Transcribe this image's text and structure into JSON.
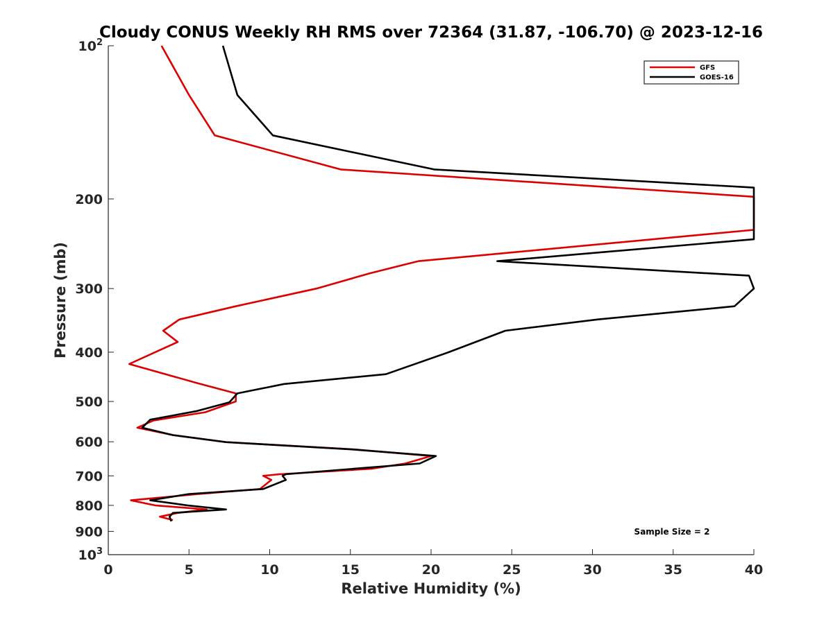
{
  "chart_data": {
    "type": "line",
    "title": "Cloudy CONUS Weekly RH RMS over 72364 (31.87, -106.70) @ 2023-12-16",
    "xlabel": "Relative Humidity (%)",
    "ylabel": "Pressure (mb)",
    "xlim": [
      0,
      40
    ],
    "ylim": [
      100,
      1000
    ],
    "y_scale": "log",
    "y_reversed": true,
    "grid": false,
    "x_ticks": [
      "0",
      "5",
      "10",
      "15",
      "20",
      "25",
      "30",
      "35",
      "40"
    ],
    "y_ticks": [
      {
        "value": 100,
        "base": "10",
        "exp": "2"
      },
      {
        "value": 200,
        "label": "200"
      },
      {
        "value": 300,
        "label": "300"
      },
      {
        "value": 400,
        "label": "400"
      },
      {
        "value": 500,
        "label": "500"
      },
      {
        "value": 600,
        "label": "600"
      },
      {
        "value": 700,
        "label": "700"
      },
      {
        "value": 800,
        "label": "800"
      },
      {
        "value": 900,
        "label": "900"
      },
      {
        "value": 1000,
        "base": "10",
        "exp": "3"
      }
    ],
    "legend": {
      "position": "top-right"
    },
    "annotation": "Sample Size = 2",
    "series": [
      {
        "name": "GFS",
        "color": "#dd0000",
        "points": [
          [
            3.3,
            100
          ],
          [
            5.0,
            125
          ],
          [
            6.6,
            150
          ],
          [
            14.4,
            175
          ],
          [
            40,
            198
          ],
          [
            40,
            230
          ],
          [
            19.2,
            265
          ],
          [
            16.2,
            280
          ],
          [
            12.9,
            300
          ],
          [
            7.9,
            325
          ],
          [
            4.4,
            345
          ],
          [
            3.4,
            363
          ],
          [
            4.3,
            382
          ],
          [
            1.3,
            422
          ],
          [
            5.5,
            460
          ],
          [
            7.9,
            482
          ],
          [
            7.9,
            500
          ],
          [
            6.0,
            525
          ],
          [
            2.8,
            545
          ],
          [
            1.8,
            563
          ],
          [
            4.0,
            582
          ],
          [
            7.3,
            601
          ],
          [
            15.2,
            621
          ],
          [
            20.0,
            640
          ],
          [
            18.4,
            662
          ],
          [
            16.3,
            678
          ],
          [
            10.6,
            695
          ],
          [
            9.6,
            700
          ],
          [
            10.1,
            713
          ],
          [
            9.4,
            743
          ],
          [
            5.6,
            760
          ],
          [
            1.4,
            782
          ],
          [
            2.9,
            800
          ],
          [
            6.1,
            815
          ],
          [
            4.3,
            828
          ],
          [
            3.2,
            842
          ],
          [
            4.0,
            855
          ]
        ]
      },
      {
        "name": "GOES-16",
        "color": "#000000",
        "points": [
          [
            7.1,
            100
          ],
          [
            8.0,
            125
          ],
          [
            10.2,
            150
          ],
          [
            20.2,
            175
          ],
          [
            40,
            190
          ],
          [
            40,
            240
          ],
          [
            24.1,
            265
          ],
          [
            39.7,
            283
          ],
          [
            40,
            300
          ],
          [
            38.8,
            325
          ],
          [
            30.3,
            345
          ],
          [
            24.6,
            363
          ],
          [
            21.1,
            400
          ],
          [
            17.2,
            442
          ],
          [
            10.9,
            462
          ],
          [
            8.0,
            482
          ],
          [
            7.5,
            502
          ],
          [
            5.5,
            522
          ],
          [
            2.6,
            543
          ],
          [
            2.1,
            563
          ],
          [
            4.0,
            582
          ],
          [
            7.3,
            601
          ],
          [
            15.0,
            621
          ],
          [
            20.3,
            640
          ],
          [
            19.3,
            662
          ],
          [
            15.2,
            678
          ],
          [
            11.0,
            695
          ],
          [
            10.8,
            700
          ],
          [
            11.0,
            713
          ],
          [
            9.6,
            743
          ],
          [
            5.0,
            760
          ],
          [
            2.6,
            782
          ],
          [
            4.9,
            800
          ],
          [
            7.3,
            815
          ],
          [
            4.0,
            828
          ],
          [
            3.8,
            842
          ],
          [
            3.9,
            860
          ]
        ]
      }
    ]
  }
}
